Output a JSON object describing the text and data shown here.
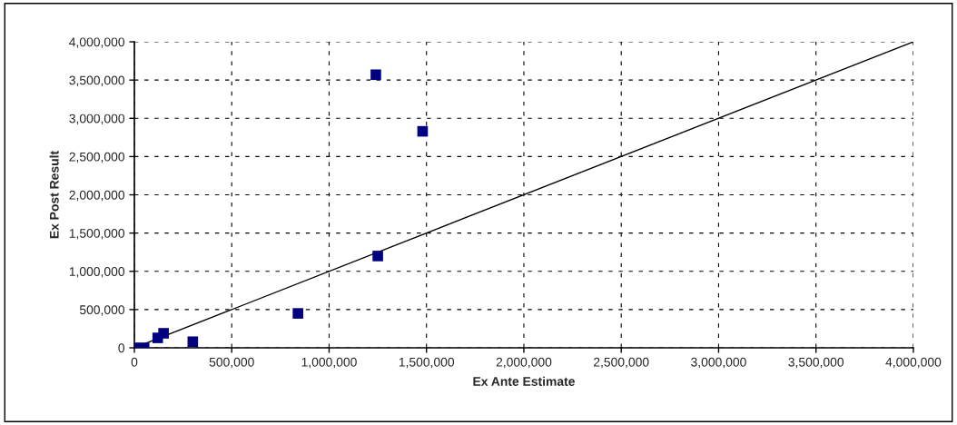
{
  "chart_data": {
    "type": "scatter",
    "xlabel": "Ex Ante Estimate",
    "ylabel": "Ex Post Result",
    "series": [
      {
        "color": "#000080",
        "x": [
          0,
          50000,
          120000,
          150000,
          300000,
          840000,
          1240000,
          1480000,
          1250000
        ],
        "values": [
          0,
          0,
          130000,
          190000,
          80000,
          450000,
          3570000,
          2830000,
          1200000
        ],
        "marker": "square"
      },
      {
        "type": "line",
        "color": "#000000",
        "x": [
          0,
          4000000
        ],
        "values": [
          0,
          4000000
        ],
        "marker": "none",
        "line_style": "solid"
      }
    ],
    "xlim": [
      0,
      4000000
    ],
    "xticks": [
      {
        "value": 0,
        "label": "0"
      },
      {
        "value": 500000,
        "label": "500,000"
      },
      {
        "value": 1000000,
        "label": "1,000,000"
      },
      {
        "value": 1500000,
        "label": "1,500,000"
      },
      {
        "value": 2000000,
        "label": "2,000,000"
      },
      {
        "value": 2500000,
        "label": "2,500,000"
      },
      {
        "value": 3000000,
        "label": "3,000,000"
      },
      {
        "value": 3500000,
        "label": "3,500,000"
      },
      {
        "value": 4000000,
        "label": "4,000,000"
      }
    ],
    "ylim": [
      0,
      4000000
    ],
    "yticks": [
      {
        "value": 0,
        "label": "0"
      },
      {
        "value": 500000,
        "label": "500,000"
      },
      {
        "value": 1000000,
        "label": "1,000,000"
      },
      {
        "value": 1500000,
        "label": "1,500,000"
      },
      {
        "value": 2000000,
        "label": "2,000,000"
      },
      {
        "value": 2500000,
        "label": "2,500,000"
      },
      {
        "value": 3000000,
        "label": "3,000,000"
      },
      {
        "value": 3500000,
        "label": "3,500,000"
      },
      {
        "value": 4000000,
        "label": "4,000,000"
      }
    ],
    "grid": true
  }
}
